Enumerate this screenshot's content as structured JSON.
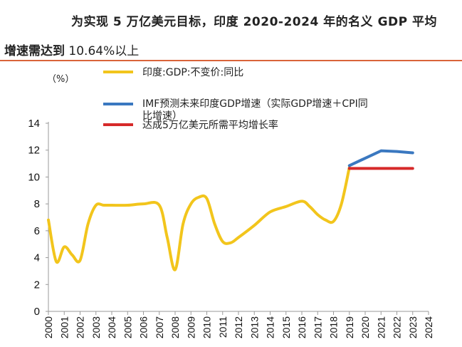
{
  "header": {
    "title_line1": "为实现 5 万亿美元目标，印度 2020-2024 年的名义 GDP 平均",
    "title_line2_a": "增速需达到",
    "title_line2_b": " 10.64%以上"
  },
  "colors": {
    "gdp": "#f2c51c",
    "imf": "#3a78c0",
    "target": "#d62a2a",
    "rule": "#d9643a"
  },
  "chart_data": {
    "type": "line",
    "title": "",
    "ylabel": "（%）",
    "xlabel": "",
    "ylim": [
      0,
      14
    ],
    "yticks": [
      0,
      2,
      4,
      6,
      8,
      10,
      12,
      14
    ],
    "categories": [
      "2000",
      "2001",
      "2002",
      "2003",
      "2004",
      "2005",
      "2006",
      "2007",
      "2008",
      "2009",
      "2010",
      "2011",
      "2012",
      "2013",
      "2014",
      "2015",
      "2016",
      "2017",
      "2018",
      "2019",
      "2020",
      "2021",
      "2022",
      "2023",
      "2024"
    ],
    "series": [
      {
        "name": "印度:GDP:不变价:同比",
        "color": "#f2c51c",
        "x": [
          2000,
          2000.5,
          2001,
          2001.5,
          2002,
          2002.5,
          2003,
          2003.5,
          2004,
          2005,
          2006,
          2007,
          2007.5,
          2008,
          2008.5,
          2009,
          2009.5,
          2010,
          2010.5,
          2011,
          2011.5,
          2012,
          2013,
          2014,
          2015,
          2016,
          2016.5,
          2017,
          2017.5,
          2018,
          2018.5,
          2019
        ],
        "values": [
          6.8,
          3.7,
          4.8,
          4.2,
          3.8,
          6.5,
          7.9,
          7.9,
          7.9,
          7.9,
          8.0,
          7.9,
          5.5,
          3.1,
          6.5,
          8.0,
          8.5,
          8.4,
          6.5,
          5.2,
          5.1,
          5.5,
          6.4,
          7.4,
          7.8,
          8.2,
          7.8,
          7.2,
          6.8,
          6.7,
          8.0,
          10.7
        ]
      },
      {
        "name": "IMF预测未来印度GDP增速（实际GDP增速＋CPI同比增速）",
        "color": "#3a78c0",
        "x": [
          2019,
          2020,
          2021,
          2022,
          2023
        ],
        "values": [
          10.85,
          11.4,
          11.95,
          11.9,
          11.8
        ]
      },
      {
        "name": "达成5万亿美元所需平均增长率",
        "color": "#d62a2a",
        "x": [
          2019,
          2020,
          2021,
          2022,
          2023
        ],
        "values": [
          10.64,
          10.64,
          10.64,
          10.64,
          10.64
        ]
      }
    ],
    "legend": [
      {
        "label": "印度:GDP:不变价:同比",
        "color": "#f2c51c"
      },
      {
        "label_line1": "IMF预测未来印度GDP增速（实际GDP增速＋CPI同",
        "label_line2": "比增速）",
        "color": "#3a78c0"
      },
      {
        "label": "达成5万亿美元所需平均增长率",
        "color": "#d62a2a"
      }
    ],
    "legend_position": "top-center"
  }
}
